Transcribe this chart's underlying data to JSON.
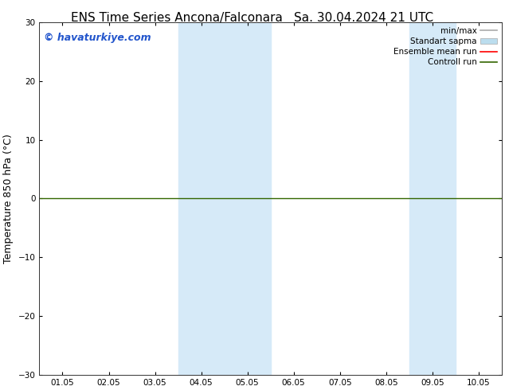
{
  "title_left": "ENS Time Series Ancona/Falconara",
  "title_right": "Sa. 30.04.2024 21 UTC",
  "ylabel": "Temperature 850 hPa (°C)",
  "ylim": [
    -30,
    30
  ],
  "yticks": [
    -30,
    -20,
    -10,
    0,
    10,
    20,
    30
  ],
  "xtick_labels": [
    "01.05",
    "02.05",
    "03.05",
    "04.05",
    "05.05",
    "06.05",
    "07.05",
    "08.05",
    "09.05",
    "10.05"
  ],
  "shade_bands": [
    {
      "xstart": 3,
      "xend": 4
    },
    {
      "xstart": 4,
      "xend": 5
    },
    {
      "xstart": 8,
      "xend": 9
    }
  ],
  "shade_color": "#d6eaf8",
  "zero_line_color": "#336600",
  "watermark": "© havaturkiye.com",
  "watermark_color": "#2255cc",
  "legend_entries": [
    {
      "label": "min/max",
      "color": "#aaaaaa",
      "lw": 1.2,
      "style": "line"
    },
    {
      "label": "Standart sapma",
      "color": "#bbddee",
      "style": "patch"
    },
    {
      "label": "Ensemble mean run",
      "color": "red",
      "lw": 1.2,
      "style": "line"
    },
    {
      "label": "Controll run",
      "color": "#336600",
      "lw": 1.2,
      "style": "line"
    }
  ],
  "bg_color": "#ffffff",
  "title_fontsize": 11,
  "tick_fontsize": 7.5,
  "ylabel_fontsize": 9,
  "legend_fontsize": 7.5
}
